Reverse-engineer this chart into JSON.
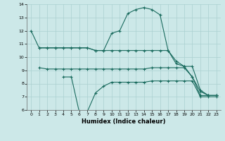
{
  "xlabel": "Humidex (Indice chaleur)",
  "color": "#1a6b5e",
  "bg_color": "#cce8e8",
  "grid_color": "#aad0d0",
  "ylim": [
    6,
    14
  ],
  "yticks": [
    6,
    7,
    8,
    9,
    10,
    11,
    12,
    13,
    14
  ],
  "xticks": [
    0,
    1,
    2,
    3,
    4,
    5,
    6,
    7,
    8,
    9,
    10,
    11,
    12,
    13,
    14,
    15,
    16,
    17,
    18,
    19,
    20,
    21,
    22,
    23
  ],
  "s1": [
    12,
    10.7,
    10.7,
    10.7,
    10.7,
    10.7,
    10.7,
    10.7,
    10.5,
    10.5,
    11.8,
    12.0,
    13.3,
    13.6,
    13.75,
    13.6,
    13.2,
    10.5,
    9.7,
    9.3,
    9.3,
    7.5,
    7.1,
    7.1
  ],
  "s2": [
    null,
    10.7,
    10.7,
    10.7,
    10.7,
    10.7,
    10.7,
    10.7,
    10.5,
    10.5,
    10.5,
    10.5,
    10.5,
    10.5,
    10.5,
    10.5,
    10.5,
    10.5,
    9.5,
    9.3,
    8.5,
    7.4,
    7.1,
    7.1
  ],
  "s3": [
    null,
    9.2,
    9.1,
    9.1,
    9.1,
    9.1,
    9.1,
    9.1,
    9.1,
    9.1,
    9.1,
    9.1,
    9.1,
    9.1,
    9.1,
    9.2,
    9.2,
    9.2,
    9.2,
    9.2,
    8.5,
    7.1,
    7.1,
    7.1
  ],
  "s4": [
    null,
    null,
    null,
    null,
    8.5,
    8.5,
    5.8,
    5.9,
    7.3,
    7.8,
    8.1,
    8.1,
    8.1,
    8.1,
    8.1,
    8.2,
    8.2,
    8.2,
    8.2,
    8.2,
    8.2,
    7.0,
    7.0,
    7.0
  ]
}
